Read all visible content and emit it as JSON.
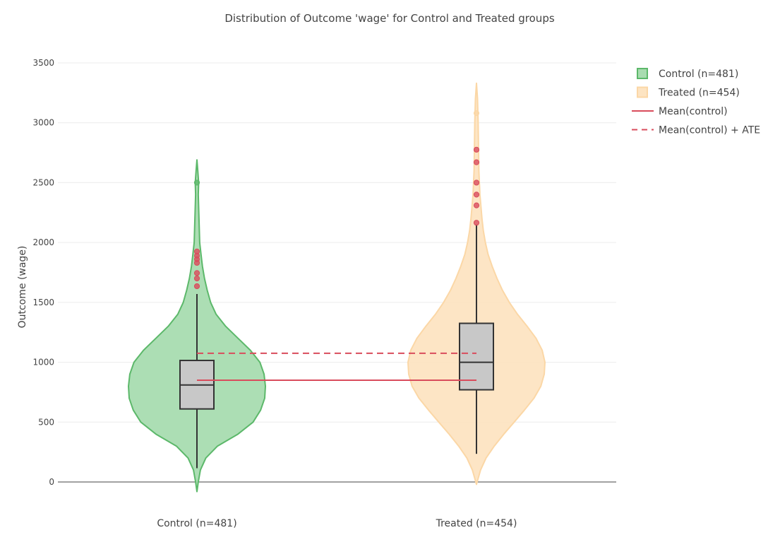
{
  "chart_data": {
    "type": "violin",
    "title": "Distribution of Outcome 'wage' for Control and Treated groups",
    "ylabel": "Outcome (wage)",
    "xlabel": "",
    "ylim": [
      -80,
      3600
    ],
    "yticks": [
      0,
      500,
      1000,
      1500,
      2000,
      2500,
      3000,
      3500
    ],
    "grid": true,
    "legend_position": "top-right",
    "categories": [
      "Control (n=481)",
      "Treated (n=454)"
    ],
    "series": [
      {
        "name": "Control (n=481)",
        "fill": "#a8dcb0",
        "stroke": "#5cb86a",
        "violin_range": [
          -80,
          2690
        ],
        "density_profile": [
          [
            -80,
            0.0
          ],
          [
            0,
            0.02
          ],
          [
            100,
            0.05
          ],
          [
            200,
            0.13
          ],
          [
            300,
            0.3
          ],
          [
            400,
            0.6
          ],
          [
            500,
            0.82
          ],
          [
            600,
            0.93
          ],
          [
            700,
            0.99
          ],
          [
            800,
            1.0
          ],
          [
            900,
            0.98
          ],
          [
            1000,
            0.92
          ],
          [
            1100,
            0.78
          ],
          [
            1200,
            0.6
          ],
          [
            1300,
            0.42
          ],
          [
            1400,
            0.28
          ],
          [
            1500,
            0.2
          ],
          [
            1600,
            0.15
          ],
          [
            1700,
            0.11
          ],
          [
            1800,
            0.08
          ],
          [
            1900,
            0.06
          ],
          [
            2000,
            0.04
          ],
          [
            2200,
            0.03
          ],
          [
            2400,
            0.02
          ],
          [
            2500,
            0.025
          ],
          [
            2600,
            0.012
          ],
          [
            2690,
            0.0
          ]
        ],
        "box": {
          "q1": 610,
          "median": 810,
          "q3": 1015,
          "whisker_low": 115,
          "whisker_high": 1570
        },
        "outliers": [
          1635,
          1700,
          1745,
          1830,
          1860,
          1890,
          1925,
          2500
        ],
        "outlier_colors": [
          "#d94c5c",
          "#d94c5c",
          "#d94c5c",
          "#d94c5c",
          "#d94c5c",
          "#d94c5c",
          "#d94c5c",
          "#5cb86a"
        ]
      },
      {
        "name": "Treated (n=454)",
        "fill": "#fde4c2",
        "stroke": "#fbd7a6",
        "violin_range": [
          -20,
          3330
        ],
        "density_profile": [
          [
            -20,
            0.0
          ],
          [
            100,
            0.06
          ],
          [
            200,
            0.14
          ],
          [
            300,
            0.26
          ],
          [
            400,
            0.4
          ],
          [
            500,
            0.55
          ],
          [
            600,
            0.7
          ],
          [
            700,
            0.84
          ],
          [
            800,
            0.94
          ],
          [
            900,
            0.99
          ],
          [
            1000,
            1.0
          ],
          [
            1100,
            0.96
          ],
          [
            1200,
            0.87
          ],
          [
            1300,
            0.74
          ],
          [
            1400,
            0.6
          ],
          [
            1500,
            0.48
          ],
          [
            1600,
            0.38
          ],
          [
            1700,
            0.3
          ],
          [
            1800,
            0.23
          ],
          [
            1900,
            0.17
          ],
          [
            2000,
            0.13
          ],
          [
            2100,
            0.1
          ],
          [
            2200,
            0.08
          ],
          [
            2400,
            0.05
          ],
          [
            2600,
            0.035
          ],
          [
            2800,
            0.03
          ],
          [
            3000,
            0.025
          ],
          [
            3200,
            0.015
          ],
          [
            3330,
            0.0
          ]
        ],
        "box": {
          "q1": 770,
          "median": 1000,
          "q3": 1325,
          "whisker_low": 235,
          "whisker_high": 2150
        },
        "outliers": [
          2165,
          2310,
          2400,
          2500,
          2670,
          2775,
          3080
        ],
        "outlier_colors": [
          "#d94c5c",
          "#d94c5c",
          "#d94c5c",
          "#d94c5c",
          "#d94c5c",
          "#d94c5c",
          "#fbd7a6"
        ]
      }
    ],
    "reference_lines": [
      {
        "name": "Mean(control)",
        "value": 850,
        "style": "solid",
        "color": "#d94c5c"
      },
      {
        "name": "Mean(control) + ATE",
        "value": 1075,
        "style": "dashed",
        "color": "#d94c5c"
      }
    ],
    "legend": [
      {
        "label": "Control (n=481)",
        "kind": "box",
        "fill": "#a8dcb0",
        "stroke": "#5cb86a"
      },
      {
        "label": "Treated (n=454)",
        "kind": "box",
        "fill": "#fde4c2",
        "stroke": "#fbd7a6"
      },
      {
        "label": "Mean(control)",
        "kind": "line",
        "style": "solid",
        "color": "#d94c5c"
      },
      {
        "label": "Mean(control) + ATE",
        "kind": "line",
        "style": "dashed",
        "color": "#d94c5c"
      }
    ],
    "box_fill": "#c8c8c8",
    "box_stroke": "#333333"
  }
}
